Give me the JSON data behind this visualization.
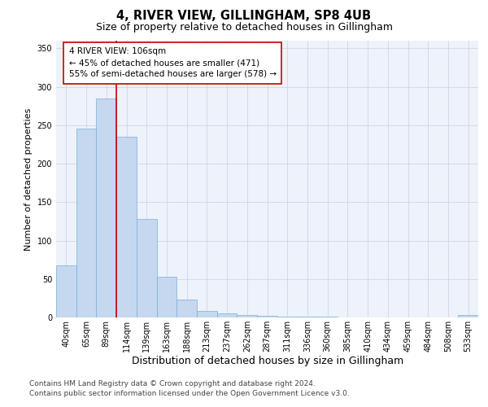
{
  "title": "4, RIVER VIEW, GILLINGHAM, SP8 4UB",
  "subtitle": "Size of property relative to detached houses in Gillingham",
  "xlabel": "Distribution of detached houses by size in Gillingham",
  "ylabel": "Number of detached properties",
  "categories": [
    "40sqm",
    "65sqm",
    "89sqm",
    "114sqm",
    "139sqm",
    "163sqm",
    "188sqm",
    "213sqm",
    "237sqm",
    "262sqm",
    "287sqm",
    "311sqm",
    "336sqm",
    "360sqm",
    "385sqm",
    "410sqm",
    "434sqm",
    "459sqm",
    "484sqm",
    "508sqm",
    "533sqm"
  ],
  "values": [
    68,
    246,
    285,
    235,
    128,
    53,
    23,
    9,
    5,
    3,
    2,
    1,
    1,
    1,
    0,
    0,
    0,
    0,
    0,
    0,
    3
  ],
  "bar_color": "#c5d8ef",
  "bar_edge_color": "#7aafd4",
  "vline_x_idx": 2.5,
  "vline_color": "#cc0000",
  "annotation_line1": "4 RIVER VIEW: 106sqm",
  "annotation_line2": "← 45% of detached houses are smaller (471)",
  "annotation_line3": "55% of semi-detached houses are larger (578) →",
  "annotation_box_facecolor": "#ffffff",
  "annotation_box_edgecolor": "#cc0000",
  "ylim": [
    0,
    360
  ],
  "yticks": [
    0,
    50,
    100,
    150,
    200,
    250,
    300,
    350
  ],
  "plot_bg": "#eef2fa",
  "grid_color": "#c8d0e0",
  "footer_line1": "Contains HM Land Registry data © Crown copyright and database right 2024.",
  "footer_line2": "Contains public sector information licensed under the Open Government Licence v3.0.",
  "title_fontsize": 10.5,
  "subtitle_fontsize": 9,
  "xlabel_fontsize": 9,
  "ylabel_fontsize": 8,
  "tick_fontsize": 7,
  "annotation_fontsize": 7.5,
  "footer_fontsize": 6.5
}
